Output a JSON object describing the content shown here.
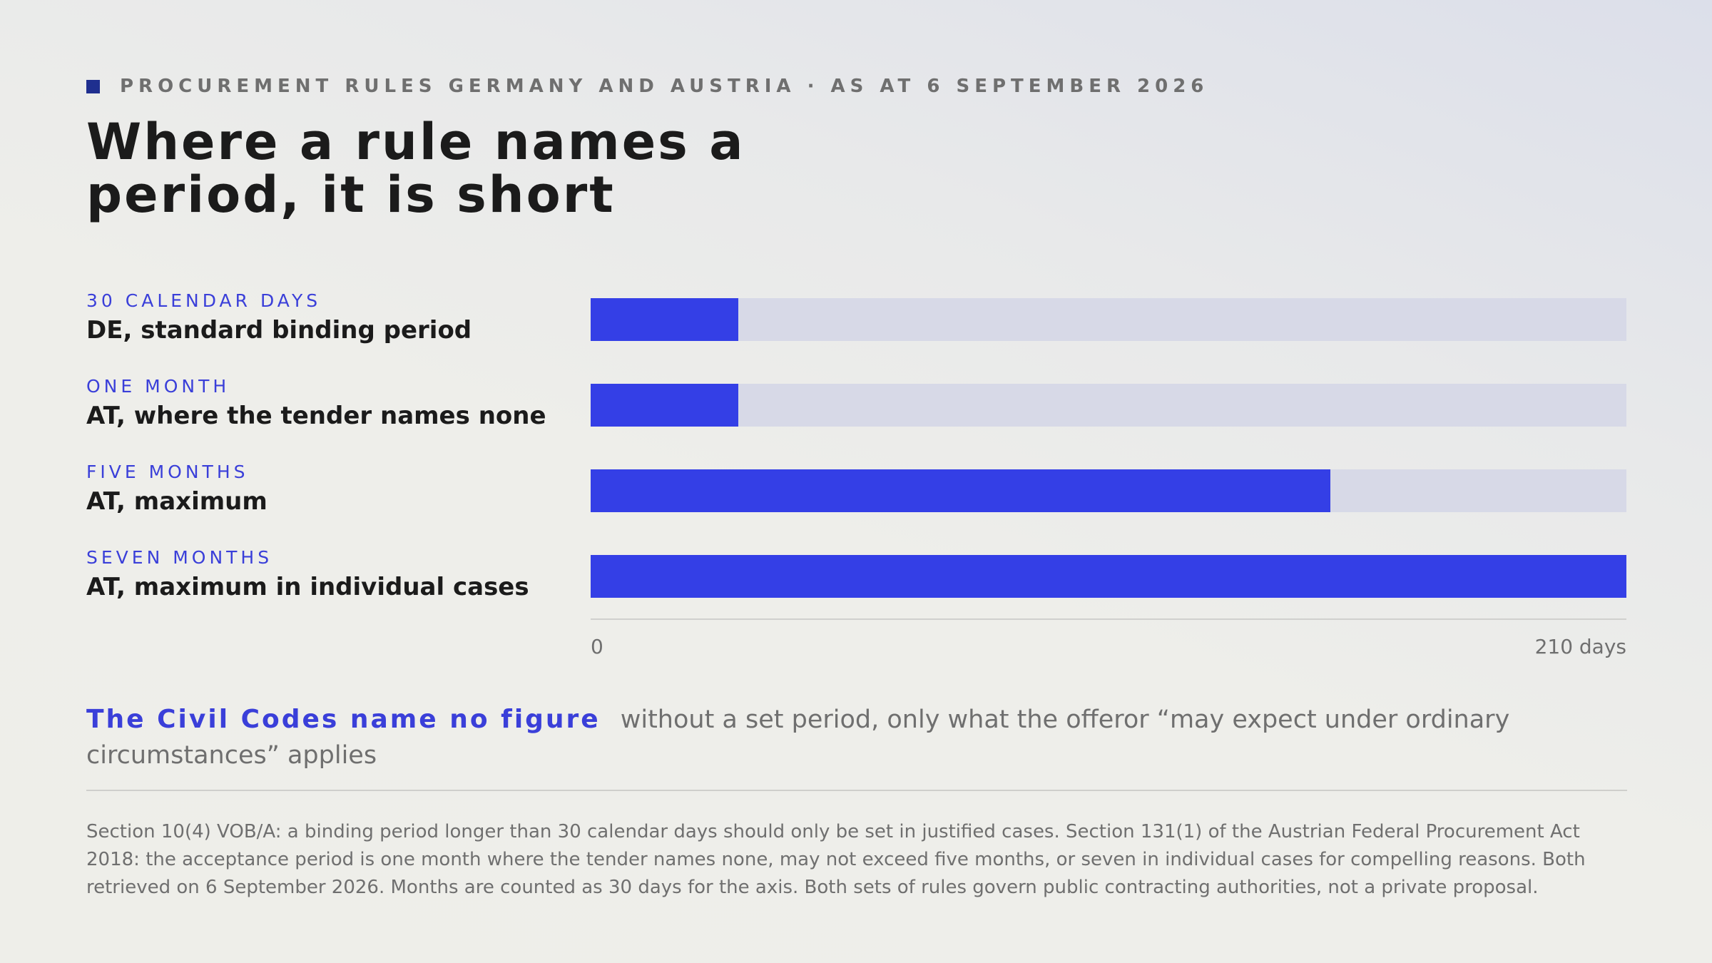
{
  "eyebrow": "PROCUREMENT RULES GERMANY AND AUSTRIA · AS AT 6 SEPTEMBER 2026",
  "title": "Where a rule names a period, it is short",
  "chart_data": {
    "type": "bar",
    "orientation": "horizontal",
    "rows": [
      {
        "kicker": "30 CALENDAR DAYS",
        "label": "DE, standard binding period",
        "value": 30
      },
      {
        "kicker": "ONE MONTH",
        "label": "AT, where the tender names none",
        "value": 30
      },
      {
        "kicker": "FIVE MONTHS",
        "label": "AT, maximum",
        "value": 150
      },
      {
        "kicker": "SEVEN MONTHS",
        "label": "AT, maximum in individual cases",
        "value": 210
      }
    ],
    "xlim": [
      0,
      210
    ],
    "x_tick_labels": [
      "0",
      "210 days"
    ],
    "grid": false,
    "colors": {
      "bar": "#343fe6",
      "track": "#d7d9e7"
    }
  },
  "note": {
    "lead": "The Civil Codes name no figure",
    "text": "without a set period, only what the offeror “may expect under ordinary circumstances” applies"
  },
  "source": "Section 10(4) VOB/A: a binding period longer than 30 calendar days should only be set in justified cases. Section 131(1) of the Austrian Federal Procurement Act 2018: the acceptance period is one month where the tender names none, may not exceed five months, or seven in individual cases for compelling reasons. Both retrieved on 6 September 2026. Months are counted as 30 days for the axis. Both sets of rules govern public contracting authorities, not a private proposal."
}
